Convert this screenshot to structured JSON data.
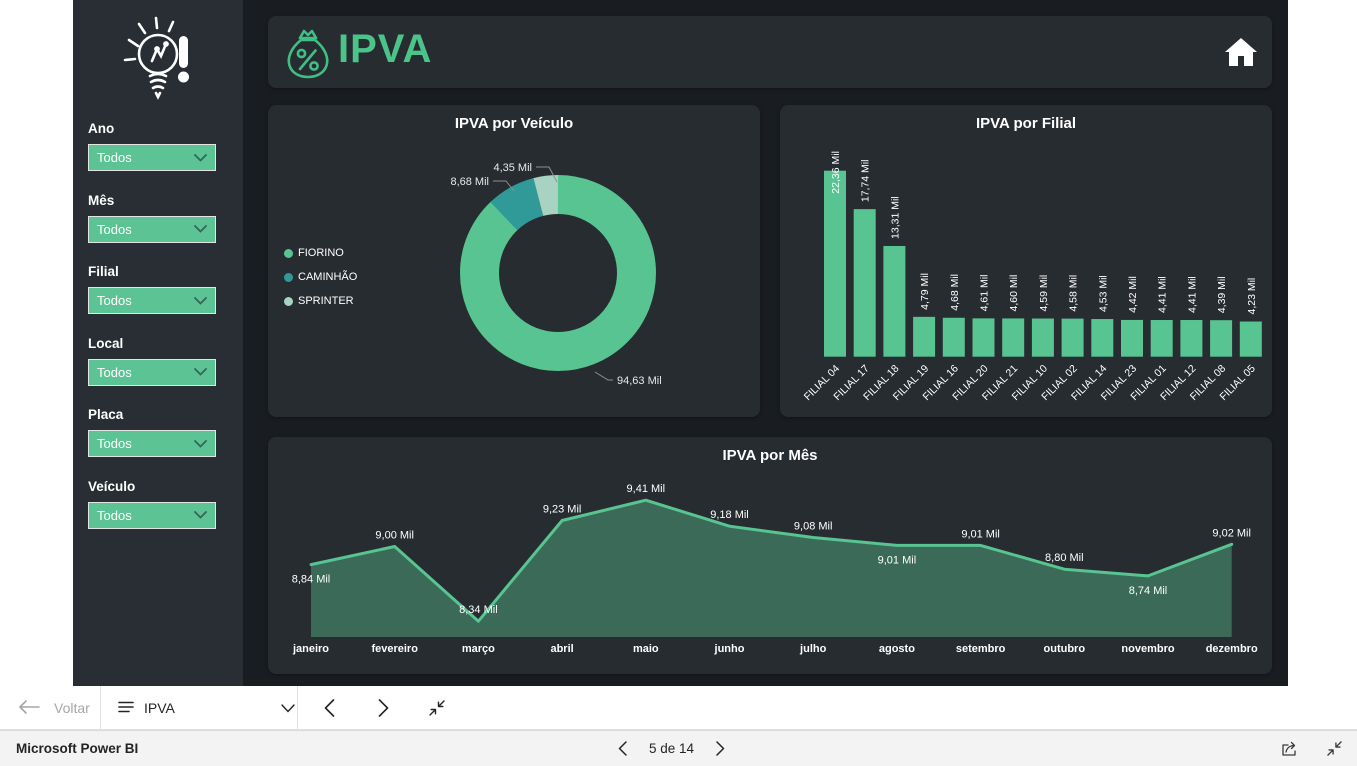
{
  "chrome": {
    "navbar": {
      "back_label": "Voltar",
      "report_selector_label": "IPVA"
    },
    "statusbar": {
      "brand": "Microsoft Power BI",
      "page_indicator": "5 de 14"
    }
  },
  "report": {
    "header": {
      "title": "IPVA"
    },
    "sidebar": {
      "filters": [
        {
          "label": "Ano",
          "value": "Todos"
        },
        {
          "label": "Mês",
          "value": "Todos"
        },
        {
          "label": "Filial",
          "value": "Todos"
        },
        {
          "label": "Local",
          "value": "Todos"
        },
        {
          "label": "Placa",
          "value": "Todos"
        },
        {
          "label": "Veículo",
          "value": "Todos"
        }
      ]
    }
  },
  "icons": {
    "sidebar_logo": "idea-lightbulb-icon",
    "header_brand": "money-bag-percent-icon",
    "header_home": "home-icon",
    "nav_back": "left-arrow-icon",
    "nav_pages": "menu-icon",
    "nav_dropdown": "chevron-down-icon",
    "nav_prev": "chevron-left-icon",
    "nav_next": "chevron-right-icon",
    "nav_fit": "fit-to-page-icon",
    "status_share": "share-icon",
    "status_fit": "fit-to-page-icon"
  },
  "colors": {
    "accent_green": "#57c491",
    "teal": "#2f9a98",
    "pale_green": "#a8d2c1",
    "card_bg": "#272c31",
    "report_bg": "#191d21",
    "sidebar_bg": "#282e33",
    "leader_line": "#8f8f8f"
  },
  "chart_data": [
    {
      "type": "pie",
      "donut": true,
      "title": "IPVA por Veículo",
      "unit": "Mil",
      "legend_position": "left",
      "segments": [
        {
          "label": "FIORINO",
          "value": 94.63,
          "display": "94,63 Mil",
          "color": "#57c491"
        },
        {
          "label": "CAMINHÃO",
          "value": 8.68,
          "display": "8,68 Mil",
          "color": "#2f9a98"
        },
        {
          "label": "SPRINTER",
          "value": 4.35,
          "display": "4,35 Mil",
          "color": "#a8d2c1"
        }
      ]
    },
    {
      "type": "bar",
      "title": "IPVA por Filial",
      "categories": [
        "FILIAL 04",
        "FILIAL 17",
        "FILIAL 18",
        "FILIAL 19",
        "FILIAL 16",
        "FILIAL 20",
        "FILIAL 21",
        "FILIAL 10",
        "FILIAL 02",
        "FILIAL 14",
        "FILIAL 23",
        "FILIAL 01",
        "FILIAL 12",
        "FILIAL 08",
        "FILIAL 05"
      ],
      "values": [
        22.36,
        17.74,
        13.31,
        4.79,
        4.68,
        4.61,
        4.6,
        4.59,
        4.58,
        4.53,
        4.42,
        4.41,
        4.41,
        4.39,
        4.23
      ],
      "labels": [
        "22,36 Mil",
        "17,74 Mil",
        "13,31 Mil",
        "4,79 Mil",
        "4,68 Mil",
        "4,61 Mil",
        "4,60 Mil",
        "4,59 Mil",
        "4,58 Mil",
        "4,53 Mil",
        "4,42 Mil",
        "4,41 Mil",
        "4,41 Mil",
        "4,39 Mil",
        "4,23 Mil"
      ],
      "color": "#57c491",
      "ylim": [
        0,
        23.5
      ],
      "grid": false
    },
    {
      "type": "area",
      "title": "IPVA por Mês",
      "categories": [
        "janeiro",
        "fevereiro",
        "março",
        "abril",
        "maio",
        "junho",
        "julho",
        "agosto",
        "setembro",
        "outubro",
        "novembro",
        "dezembro"
      ],
      "values": [
        8.84,
        9.0,
        8.34,
        9.23,
        9.41,
        9.18,
        9.08,
        9.01,
        9.01,
        8.8,
        8.74,
        9.02
      ],
      "labels": [
        "8,84 Mil",
        "9,00 Mil",
        "8,34 Mil",
        "9,23 Mil",
        "9,41 Mil",
        "9,18 Mil",
        "9,08 Mil",
        "9,01 Mil",
        "9,01 Mil",
        "8,80 Mil",
        "8,74 Mil",
        "9,02 Mil"
      ],
      "labels_below_indices": [
        0,
        7,
        10
      ],
      "color": "#57c491",
      "ylim": [
        8.2,
        9.55
      ],
      "grid": false
    }
  ]
}
